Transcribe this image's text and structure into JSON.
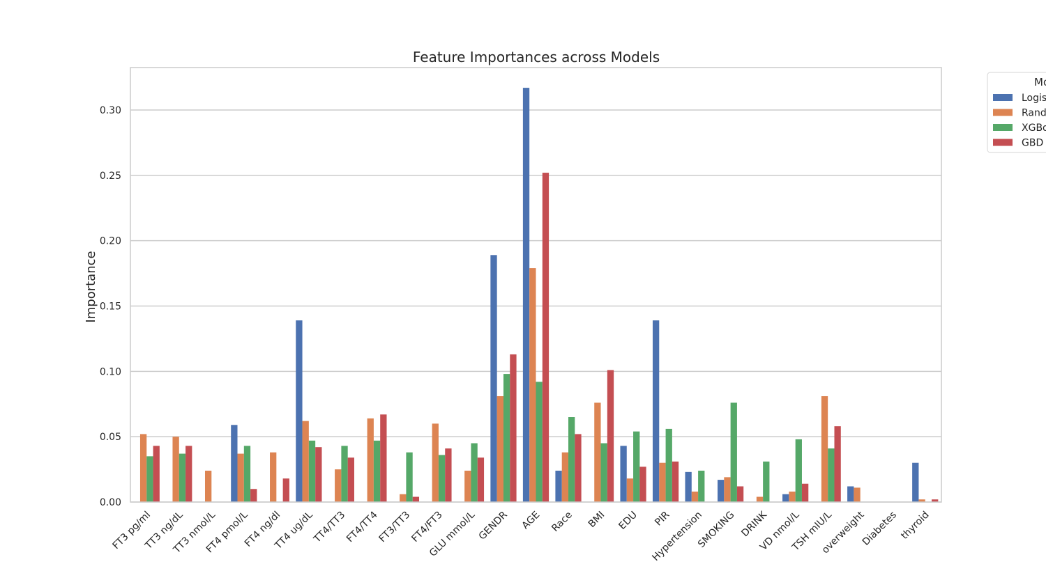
{
  "chart_data": {
    "type": "bar",
    "title": "Feature Importances across Models",
    "xlabel": "",
    "ylabel": "Importance",
    "ylim": [
      0,
      0.3325
    ],
    "yticks": [
      "0.00",
      "0.05",
      "0.10",
      "0.15",
      "0.20",
      "0.25",
      "0.30"
    ],
    "grid": true,
    "legend_placement": "outside-top-right",
    "legend_title": "Mo",
    "categories": [
      "FT3 pg/ml",
      "TT3 ng/dL",
      "TT3 nmol/L",
      "FT4 pmol/L",
      "FT4 ng/dl",
      "TT4 ug/dL",
      "TT4/TT3",
      "FT4/TT4",
      "FT3/TT3",
      "FT4/FT3",
      "GLU mmol/L",
      "GENDR",
      "AGE",
      "Race",
      "BMI",
      "EDU",
      "PIR",
      "Hypertension",
      "SMOKING",
      "DRINK",
      "VD nmol/L",
      "TSH mIU/L",
      "overweight",
      "Diabetes",
      "thyroid"
    ],
    "series": [
      {
        "name": "Logis",
        "color": "#4c72b0",
        "values": [
          0,
          0,
          0,
          0.059,
          0,
          0.139,
          0,
          0,
          0,
          0,
          0,
          0.189,
          0.317,
          0.024,
          0,
          0.043,
          0.139,
          0.023,
          0.017,
          0,
          0.006,
          0,
          0.012,
          0,
          0.03
        ]
      },
      {
        "name": "Rand",
        "color": "#dd8452",
        "values": [
          0.052,
          0.05,
          0.024,
          0.037,
          0.038,
          0.062,
          0.025,
          0.064,
          0.006,
          0.06,
          0.024,
          0.081,
          0.179,
          0.038,
          0.076,
          0.018,
          0.03,
          0.008,
          0.019,
          0.004,
          0.008,
          0.081,
          0.011,
          0,
          0.002
        ]
      },
      {
        "name": "XGBo",
        "color": "#55a868",
        "values": [
          0.035,
          0.037,
          0,
          0.043,
          0,
          0.047,
          0.043,
          0.047,
          0.038,
          0.036,
          0.045,
          0.098,
          0.092,
          0.065,
          0.045,
          0.054,
          0.056,
          0.024,
          0.076,
          0.031,
          0.048,
          0.041,
          0,
          0,
          0
        ]
      },
      {
        "name": "GBD",
        "color": "#c44e52",
        "values": [
          0.043,
          0.043,
          0,
          0.01,
          0.018,
          0.042,
          0.034,
          0.067,
          0.004,
          0.041,
          0.034,
          0.113,
          0.252,
          0.052,
          0.101,
          0.027,
          0.031,
          0,
          0.012,
          0,
          0.014,
          0.058,
          0,
          0,
          0.002
        ]
      }
    ]
  }
}
